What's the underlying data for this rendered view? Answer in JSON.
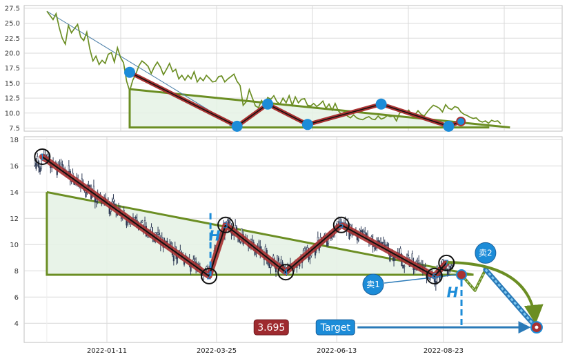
{
  "chart_data": [
    {
      "panel": "top",
      "type": "line",
      "ylim": [
        7,
        28
      ],
      "yticks": [
        "7.5",
        "10.0",
        "12.5",
        "15.0",
        "17.5",
        "20.0",
        "22.5",
        "25.0",
        "27.5"
      ],
      "ytick_values": [
        7.5,
        10,
        12.5,
        15,
        17.5,
        20,
        22.5,
        25,
        27.5
      ],
      "grid": true,
      "line_color": "#6b8e23",
      "series": [
        {
          "values": [
            27,
            26.3,
            25.6,
            26.6,
            24.3,
            22.5,
            21.5,
            24.6,
            23.4,
            24.1,
            24.8,
            22.7,
            22.1,
            23.5,
            20.7,
            18.7,
            19.5,
            18.1,
            18.8,
            18.3,
            19.8,
            20.1,
            18.5,
            20.9,
            19.3,
            18.4,
            15.3,
            13.7,
            15.5,
            16.5,
            17.9,
            18.7,
            18.3,
            17.8,
            16.6,
            17.7,
            18.5,
            17.7,
            16.4,
            17.3,
            18.3,
            16.9,
            17.3,
            15.7,
            16.3,
            15.5,
            16.3,
            15.7,
            16.9,
            15.2,
            15.9,
            15.4,
            16.3,
            15.8,
            15.2,
            15.3,
            16.1,
            16.2,
            15.2,
            15.7,
            16.1,
            16.5,
            15.3,
            14.6,
            11.3,
            11.9,
            13.9,
            12.5,
            11.2,
            10.9,
            12.1,
            11.4,
            12.6,
            12.3,
            12.9,
            11.9,
            11.5,
            12.5,
            11.7,
            12.9,
            11.3,
            12.7,
            11.7,
            12.3,
            12.4,
            11.3,
            11.2,
            11.6,
            11.1,
            11.5,
            12.0,
            10.8,
            11.5,
            10.5,
            11.6,
            10.4,
            9.8,
            10.2,
            9.5,
            9.2,
            9.7,
            9.2,
            9.0,
            8.9,
            9.2,
            9.4,
            9.0,
            8.9,
            9.5,
            9.0,
            9.2,
            9.6,
            9.4,
            9.5,
            8.7,
            10.0,
            10.3,
            10.1,
            10.5,
            9.6,
            9.7,
            10.4,
            9.8,
            9.5,
            10.2,
            10.8,
            11.3,
            11.1,
            10.8,
            10.2,
            11.4,
            10.8,
            10.6,
            11.1,
            10.9,
            10.2,
            9.8,
            9.6,
            9.3,
            9.1,
            9.2,
            8.7,
            8.5,
            8.7,
            8.3,
            8.8,
            8.6,
            8.7,
            8.2
          ]
        }
      ],
      "annotation_points": [
        {
          "x_index": 0,
          "value": 27.0
        },
        {
          "x_index": 27,
          "value": 16.8
        },
        {
          "x_index": 62,
          "value": 7.8
        },
        {
          "x_index": 72,
          "value": 11.5
        },
        {
          "x_index": 85,
          "value": 8.1
        },
        {
          "x_index": 109,
          "value": 11.5
        },
        {
          "x_index": 131,
          "value": 7.8
        },
        {
          "x_index": 135,
          "value": 8.6
        }
      ],
      "triangle": {
        "x_start": 27,
        "x_end": 151,
        "top": 14.0,
        "bottom": 7.6
      }
    },
    {
      "panel": "bottom",
      "type": "candlestick",
      "ylim": [
        2.4,
        18.2
      ],
      "yticks": [
        "4",
        "6",
        "8",
        "10",
        "12",
        "14",
        "16",
        "18"
      ],
      "ytick_values": [
        4,
        6,
        8,
        10,
        12,
        14,
        16,
        18
      ],
      "grid": true,
      "x_ticks": [
        "2022-01-11",
        "2022-03-25",
        "2022-06-13",
        "2022-08-23"
      ],
      "x_tick_dates": [
        "2022-01-11",
        "2022-03-25",
        "2022-06-13",
        "2022-08-23"
      ],
      "x_range": [
        "2021-11-22",
        "2022-11-29"
      ],
      "candle_color": "#2e3a55",
      "waves": [
        {
          "label": "1",
          "date": "2021-11-29",
          "value": 16.7
        },
        {
          "label": "2",
          "date": "2022-03-20",
          "value": 7.6
        },
        {
          "label": "3",
          "date": "2022-03-31",
          "value": 11.5
        },
        {
          "label": "4",
          "date": "2022-05-10",
          "value": 7.9
        },
        {
          "label": "5",
          "date": "2022-06-16",
          "value": 11.5
        },
        {
          "label": "6",
          "date": "2022-08-17",
          "value": 7.6
        },
        {
          "label": "7",
          "date": "2022-08-25",
          "value": 8.6
        }
      ],
      "triangle": {
        "x_start": "2021-12-02",
        "x_end": "2022-09-12",
        "top": 14.0,
        "bottom": 7.7
      },
      "h_label": "H",
      "sell_labels": [
        "卖1",
        "卖2"
      ],
      "sell1_date": "2022-09-04",
      "sell1_value": 7.7,
      "sell2_date": "2022-09-20",
      "sell2_value": 8.1,
      "projection_low": 6.5,
      "projection_low_date": "2022-09-13",
      "target_value": 3.695,
      "target_date": "2022-10-24",
      "target_label": "Target",
      "target_price_label": "3.695"
    }
  ],
  "colors": {
    "wave_outer": "#a83232",
    "wave_inner": "#111111",
    "triangle_line": "#6b8e23",
    "triangle_fill": "#e5f2e5",
    "accent_blue": "#1c8cd8",
    "target_box": "#1c8cd8",
    "price_box": "#9e2a2f"
  }
}
